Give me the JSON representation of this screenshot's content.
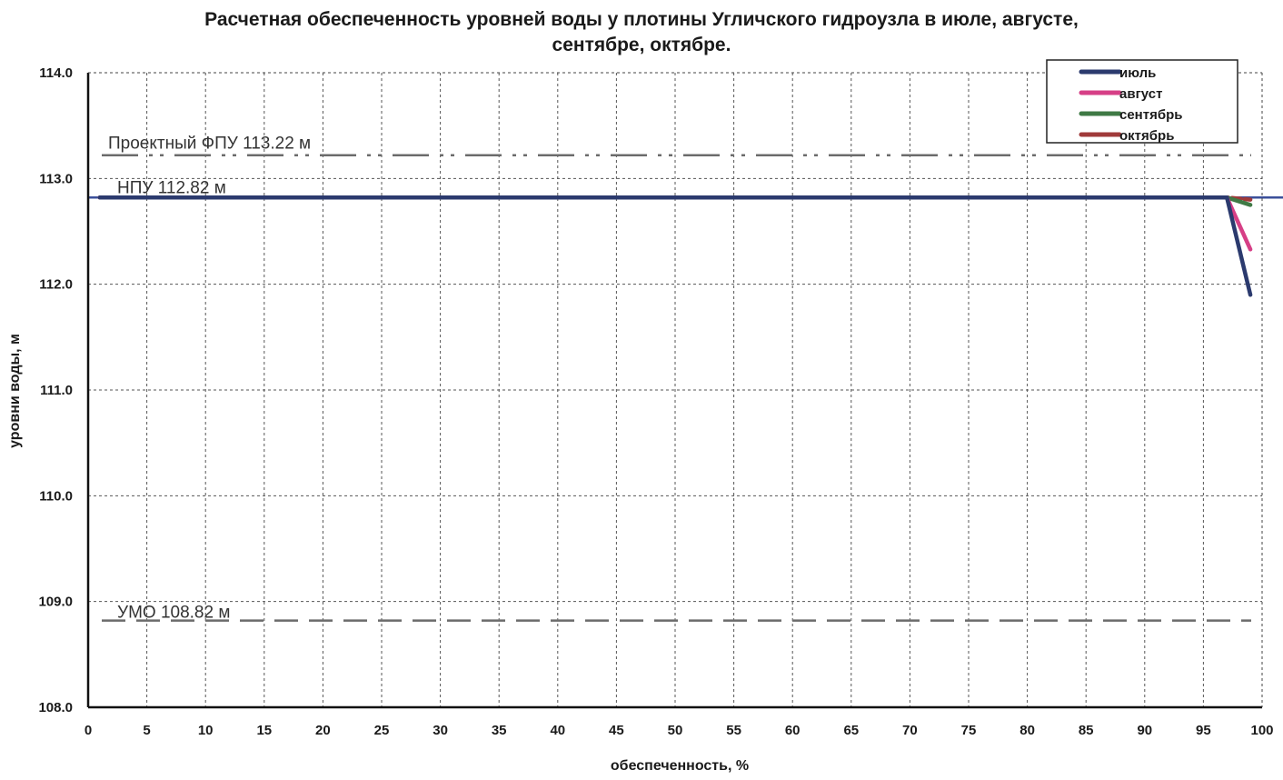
{
  "chart_data": {
    "type": "line",
    "title_lines": [
      "Расчетная обеспеченность уровней воды у плотины Угличского гидроузла в июле, августе,",
      "сентябре, октябре."
    ],
    "xlabel": "обеспеченность,  %",
    "ylabel": "уровни воды, м",
    "xlim": [
      0,
      100
    ],
    "ylim": [
      108.0,
      114.0
    ],
    "x_ticks": [
      "0",
      "5",
      "10",
      "15",
      "20",
      "25",
      "30",
      "35",
      "40",
      "45",
      "50",
      "55",
      "60",
      "65",
      "70",
      "75",
      "80",
      "85",
      "90",
      "95",
      "100"
    ],
    "y_ticks": [
      "108.0",
      "109.0",
      "110.0",
      "111.0",
      "112.0",
      "113.0",
      "114.0"
    ],
    "grid": true,
    "legend_position": "top-right",
    "series": [
      {
        "name": "июль",
        "color": "#2b3a6e",
        "x": [
          1,
          97,
          99
        ],
        "y": [
          112.82,
          112.82,
          111.9
        ]
      },
      {
        "name": "август",
        "color": "#d63f86",
        "x": [
          1,
          97,
          99
        ],
        "y": [
          112.82,
          112.82,
          112.33
        ]
      },
      {
        "name": "сентябрь",
        "color": "#3f7a45",
        "x": [
          1,
          97,
          99
        ],
        "y": [
          112.82,
          112.82,
          112.75
        ]
      },
      {
        "name": "октябрь",
        "color": "#a03a3a",
        "x": [
          1,
          97,
          99
        ],
        "y": [
          112.82,
          112.82,
          112.8
        ]
      }
    ],
    "reference_lines": [
      {
        "label": "Проектный ФПУ 113.22 м",
        "value": 113.22,
        "style": "dash-dot-dot",
        "color": "#6b6b6b"
      },
      {
        "label": "НПУ 112.82 м",
        "value": 112.82,
        "style": "solid",
        "color": "#3b4f9a"
      },
      {
        "label": "УМО 108.82 м",
        "value": 108.82,
        "style": "dashed",
        "color": "#6b6b6b"
      }
    ]
  }
}
